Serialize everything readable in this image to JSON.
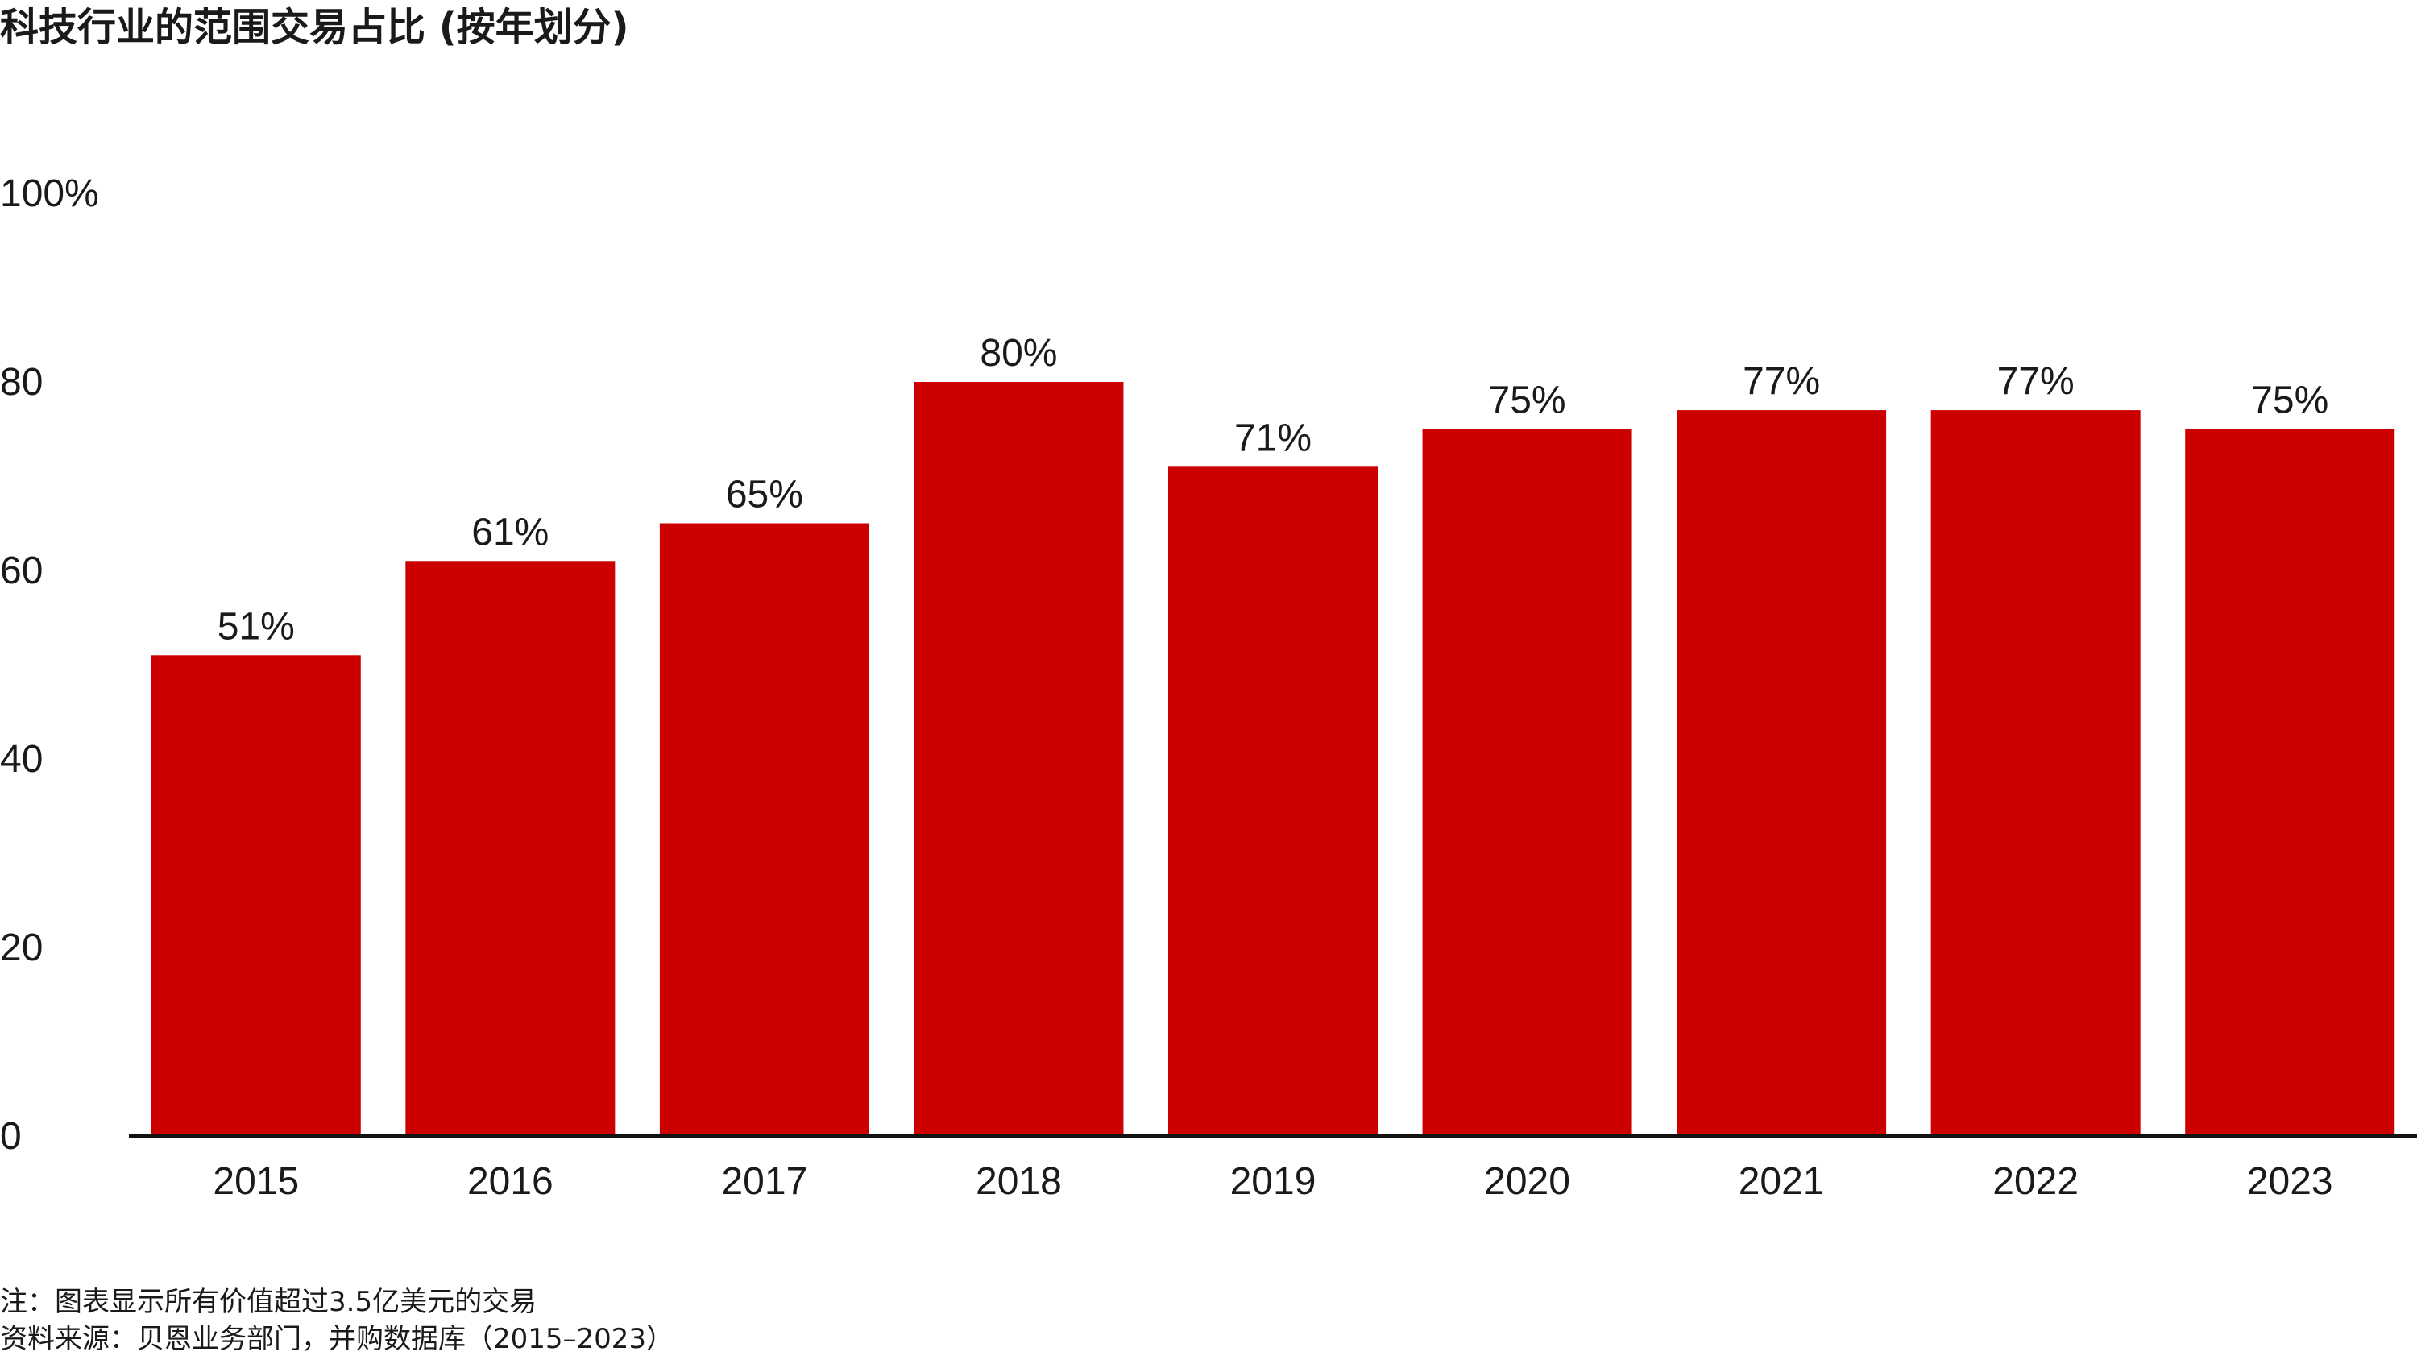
{
  "title": "科技行业的范围交易占比 (按年划分)",
  "chart_data": {
    "type": "bar",
    "title": "科技行业的范围交易占比 (按年划分)",
    "categories": [
      "2015",
      "2016",
      "2017",
      "2018",
      "2019",
      "2020",
      "2021",
      "2022",
      "2023"
    ],
    "values": [
      51,
      61,
      65,
      80,
      71,
      75,
      77,
      77,
      75
    ],
    "data_labels": [
      "51%",
      "61%",
      "65%",
      "80%",
      "71%",
      "75%",
      "77%",
      "77%",
      "75%"
    ],
    "ylim": [
      0,
      100
    ],
    "yticks": [
      0,
      20,
      40,
      60,
      80,
      100
    ],
    "ytick_labels": [
      "0",
      "20",
      "40",
      "60",
      "80",
      "100%"
    ],
    "xlabel": "",
    "ylabel": "",
    "grid": false,
    "legend": "none",
    "bar_color": "#cc0000",
    "axis_color": "#111111"
  },
  "footer": {
    "note": "注：图表显示所有价值超过3.5亿美元的交易",
    "source": "资料来源：贝恩业务部门，并购数据库（2015–2023）"
  }
}
